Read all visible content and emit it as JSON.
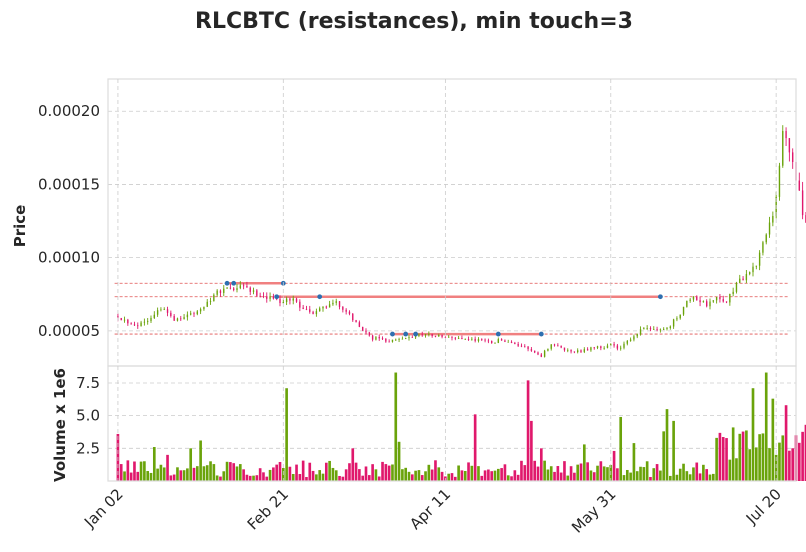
{
  "chart_data": {
    "type": "candlestick",
    "title": "RLCBTC (resistances), min touch=3",
    "price_panel": {
      "ylabel": "Price",
      "ylim": [
        2.6e-05,
        0.000222
      ],
      "yticks": [
        5e-05,
        0.0001,
        0.00015,
        0.0002
      ],
      "ytick_labels": [
        "0.00005",
        "0.00010",
        "0.00015",
        "0.00020"
      ],
      "grid": true
    },
    "volume_panel": {
      "ylabel": "Volume x 1e6",
      "ylim": [
        0,
        8.8
      ],
      "yticks": [
        2.5,
        5.0,
        7.5
      ],
      "ytick_labels": [
        "2.5",
        "5.0",
        "7.5"
      ],
      "grid": true
    },
    "x_range_days": [
      -3,
      205
    ],
    "xticks": [
      {
        "day": 0,
        "label": "Jan 02"
      },
      {
        "day": 50,
        "label": "Feb 21"
      },
      {
        "day": 99,
        "label": "Apr 11"
      },
      {
        "day": 149,
        "label": "May 31"
      },
      {
        "day": 199,
        "label": "Jul 20"
      }
    ],
    "colors": {
      "up": "#6aa30a",
      "down": "#e0186c",
      "resistance_line": "#f08080",
      "dashed_level": "#e05050",
      "touch_marker": "#2e6fb0"
    },
    "close_anchors": [
      [
        0,
        6e-05
      ],
      [
        3,
        5.6e-05
      ],
      [
        6,
        5.4e-05
      ],
      [
        9,
        5.8e-05
      ],
      [
        12,
        6.4e-05
      ],
      [
        14,
        6.6e-05
      ],
      [
        17,
        5.8e-05
      ],
      [
        20,
        6e-05
      ],
      [
        23,
        6.2e-05
      ],
      [
        26,
        6.8e-05
      ],
      [
        29,
        7.4e-05
      ],
      [
        32,
        7.9e-05
      ],
      [
        35,
        7.8e-05
      ],
      [
        38,
        8e-05
      ],
      [
        41,
        7.6e-05
      ],
      [
        44,
        7.4e-05
      ],
      [
        47,
        7.2e-05
      ],
      [
        50,
        7e-05
      ],
      [
        53,
        7.2e-05
      ],
      [
        56,
        6.5e-05
      ],
      [
        59,
        6.2e-05
      ],
      [
        62,
        6.6e-05
      ],
      [
        65,
        7e-05
      ],
      [
        68,
        6.6e-05
      ],
      [
        71,
        5.8e-05
      ],
      [
        74,
        5e-05
      ],
      [
        77,
        4.5e-05
      ],
      [
        80,
        4.4e-05
      ],
      [
        83,
        4.3e-05
      ],
      [
        86,
        4.4e-05
      ],
      [
        89,
        4.6e-05
      ],
      [
        92,
        4.8e-05
      ],
      [
        95,
        4.7e-05
      ],
      [
        98,
        4.6e-05
      ],
      [
        101,
        4.5e-05
      ],
      [
        104,
        4.5e-05
      ],
      [
        107,
        4.4e-05
      ],
      [
        110,
        4.3e-05
      ],
      [
        113,
        4.2e-05
      ],
      [
        116,
        4.4e-05
      ],
      [
        119,
        4.2e-05
      ],
      [
        122,
        4e-05
      ],
      [
        125,
        3.6e-05
      ],
      [
        128,
        3.3e-05
      ],
      [
        131,
        4.1e-05
      ],
      [
        134,
        3.8e-05
      ],
      [
        137,
        3.6e-05
      ],
      [
        140,
        3.6e-05
      ],
      [
        143,
        3.8e-05
      ],
      [
        146,
        3.9e-05
      ],
      [
        149,
        4e-05
      ],
      [
        152,
        3.8e-05
      ],
      [
        155,
        4.5e-05
      ],
      [
        158,
        5e-05
      ],
      [
        161,
        5.2e-05
      ],
      [
        164,
        5e-05
      ],
      [
        167,
        5.4e-05
      ],
      [
        170,
        6.2e-05
      ],
      [
        172,
        7.1e-05
      ],
      [
        175,
        7.2e-05
      ],
      [
        178,
        6.8e-05
      ],
      [
        181,
        7.2e-05
      ],
      [
        184,
        7e-05
      ],
      [
        187,
        8.2e-05
      ],
      [
        190,
        8.8e-05
      ],
      [
        193,
        9.5e-05
      ],
      [
        196,
        0.000115
      ],
      [
        199,
        0.00014
      ],
      [
        201,
        0.00019
      ],
      [
        203,
        0.00017
      ],
      [
        205,
        0.000155
      ],
      [
        207,
        0.00013
      ],
      [
        209,
        0.00012
      ],
      [
        211,
        0.000105
      ],
      [
        213,
        9e-05
      ]
    ],
    "volume_spikes": [
      [
        0,
        3.6
      ],
      [
        11,
        2.6
      ],
      [
        15,
        2.0
      ],
      [
        22,
        2.5
      ],
      [
        25,
        3.1
      ],
      [
        51,
        7.1
      ],
      [
        71,
        2.5
      ],
      [
        84,
        8.3
      ],
      [
        85,
        3.0
      ],
      [
        108,
        5.1
      ],
      [
        124,
        7.7
      ],
      [
        125,
        4.6
      ],
      [
        128,
        2.5
      ],
      [
        141,
        2.8
      ],
      [
        150,
        2.3
      ],
      [
        152,
        4.9
      ],
      [
        156,
        2.9
      ],
      [
        165,
        3.8
      ],
      [
        166,
        5.5
      ],
      [
        168,
        4.6
      ],
      [
        181,
        3.3
      ],
      [
        186,
        4.1
      ],
      [
        192,
        7.1
      ],
      [
        196,
        8.3
      ],
      [
        198,
        6.3
      ],
      [
        202,
        5.8
      ],
      [
        205,
        3.5
      ],
      [
        208,
        4.3
      ]
    ],
    "resistance_levels": [
      {
        "price": 8.25e-05,
        "from_day": 33,
        "to_day": 50,
        "touch_days": [
          33,
          35,
          50
        ]
      },
      {
        "price": 7.33e-05,
        "from_day": 48,
        "to_day": 164,
        "touch_days": [
          48,
          61,
          164
        ]
      },
      {
        "price": 4.78e-05,
        "from_day": 83,
        "to_day": 128,
        "touch_days": [
          83,
          87,
          90,
          115,
          128
        ]
      }
    ],
    "dashed_levels": [
      8.25e-05,
      7.33e-05,
      4.78e-05
    ]
  }
}
